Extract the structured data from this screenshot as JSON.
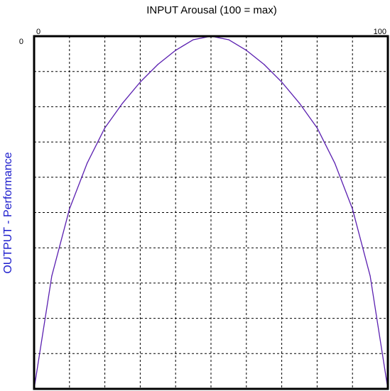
{
  "chart_data": {
    "type": "line",
    "title": "INPUT Arousal (100 = max)",
    "xlabel": "",
    "ylabel": "OUTPUT - Performance",
    "x_tick_labels": [
      "0",
      "100"
    ],
    "y_tick_labels": [
      "0"
    ],
    "xlim": [
      0,
      100
    ],
    "ylim": [
      0,
      100
    ],
    "grid": true,
    "legend": "none",
    "series": [
      {
        "color": "#5a1fb0",
        "x": [
          0,
          5,
          10,
          15,
          20,
          25,
          30,
          35,
          40,
          45,
          50,
          55,
          60,
          65,
          70,
          75,
          80,
          85,
          90,
          95,
          100
        ],
        "y": [
          0,
          32,
          51,
          64,
          74,
          81,
          87,
          92,
          96,
          99,
          100,
          99,
          96,
          92,
          87,
          81,
          74,
          64,
          51,
          32,
          0
        ]
      }
    ]
  },
  "colors": {
    "ylabel": "#1a1acc",
    "curve": "#5a1fb0",
    "frame": "#000000",
    "grid": "#000000",
    "background": "#ffffff"
  }
}
